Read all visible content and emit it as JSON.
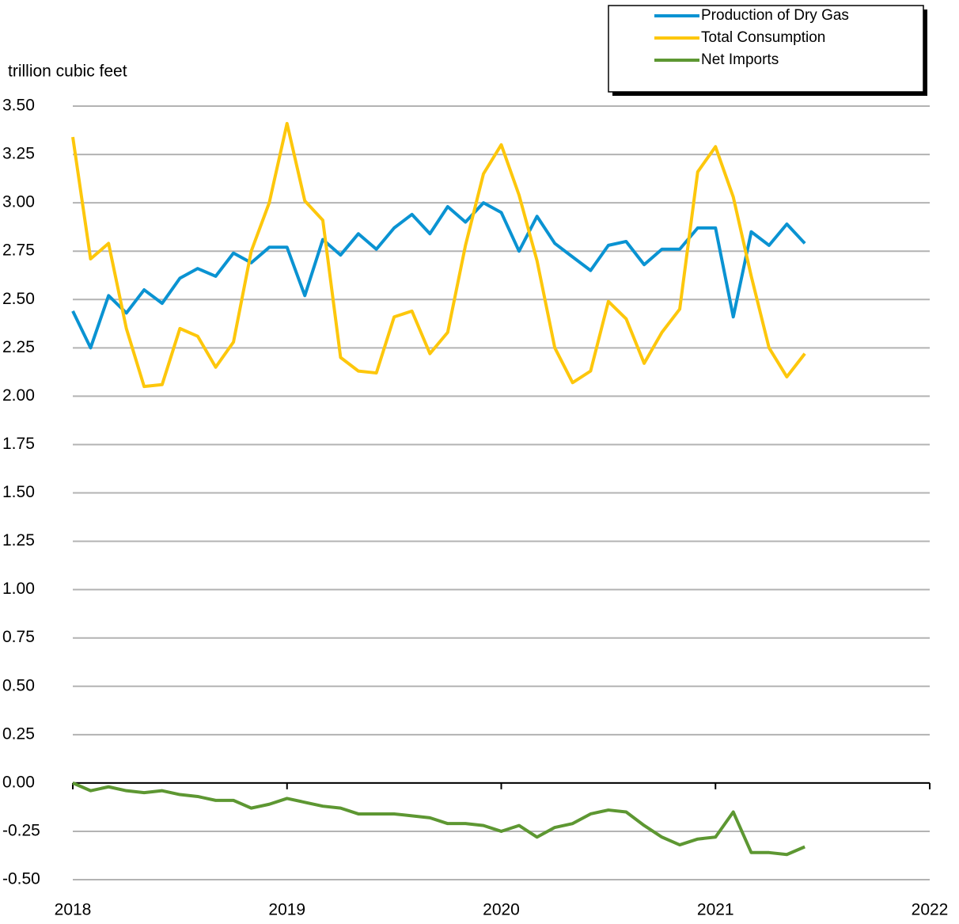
{
  "chart_data": {
    "type": "line",
    "y_label": "trillion cubic feet",
    "x": [
      2018,
      2018.083,
      2018.167,
      2018.25,
      2018.333,
      2018.417,
      2018.5,
      2018.583,
      2018.667,
      2018.75,
      2018.833,
      2018.917,
      2019,
      2019.083,
      2019.167,
      2019.25,
      2019.333,
      2019.417,
      2019.5,
      2019.583,
      2019.667,
      2019.75,
      2019.833,
      2019.917,
      2020,
      2020.083,
      2020.167,
      2020.25,
      2020.333,
      2020.417,
      2020.5,
      2020.583,
      2020.667,
      2020.75,
      2020.833,
      2020.917,
      2021,
      2021.083,
      2021.167,
      2021.25,
      2021.333,
      2021.417
    ],
    "series": [
      {
        "name": "Production of Dry Gas",
        "color": "#0a93d2",
        "values": [
          2.44,
          2.25,
          2.52,
          2.43,
          2.55,
          2.48,
          2.61,
          2.66,
          2.62,
          2.74,
          2.69,
          2.77,
          2.77,
          2.52,
          2.81,
          2.73,
          2.84,
          2.76,
          2.87,
          2.94,
          2.84,
          2.98,
          2.9,
          3.0,
          2.95,
          2.75,
          2.93,
          2.79,
          2.72,
          2.65,
          2.78,
          2.8,
          2.68,
          2.76,
          2.76,
          2.87,
          2.87,
          2.41,
          2.85,
          2.78,
          2.89,
          2.79
        ]
      },
      {
        "name": "Total Consumption",
        "color": "#fdc70c",
        "values": [
          3.34,
          2.71,
          2.79,
          2.35,
          2.05,
          2.06,
          2.35,
          2.31,
          2.15,
          2.28,
          2.75,
          3.0,
          3.41,
          3.01,
          2.91,
          2.2,
          2.13,
          2.12,
          2.41,
          2.44,
          2.22,
          2.33,
          2.78,
          3.15,
          3.3,
          3.04,
          2.7,
          2.25,
          2.07,
          2.13,
          2.49,
          2.4,
          2.17,
          2.33,
          2.45,
          3.16,
          3.29,
          3.03,
          2.62,
          2.25,
          2.1,
          2.22
        ]
      },
      {
        "name": "Net Imports",
        "color": "#5d9732",
        "values": [
          0.0,
          -0.04,
          -0.02,
          -0.04,
          -0.05,
          -0.04,
          -0.06,
          -0.07,
          -0.09,
          -0.09,
          -0.13,
          -0.11,
          -0.08,
          -0.1,
          -0.12,
          -0.13,
          -0.16,
          -0.16,
          -0.16,
          -0.17,
          -0.18,
          -0.21,
          -0.21,
          -0.22,
          -0.25,
          -0.22,
          -0.28,
          -0.23,
          -0.21,
          -0.16,
          -0.14,
          -0.15,
          -0.22,
          -0.28,
          -0.32,
          -0.29,
          -0.28,
          -0.15,
          -0.36,
          -0.36,
          -0.37,
          -0.33
        ]
      }
    ],
    "xlim": [
      2018,
      2022
    ],
    "xticks": [
      2018,
      2019,
      2020,
      2021,
      2022
    ],
    "ylim": [
      -0.5,
      3.5
    ],
    "yticks": [
      {
        "value": -0.5,
        "label": "-0.50"
      },
      {
        "value": -0.25,
        "label": "-0.25"
      },
      {
        "value": 0,
        "label": "0.00"
      },
      {
        "value": 0.25,
        "label": "0.25"
      },
      {
        "value": 0.5,
        "label": "0.50"
      },
      {
        "value": 0.75,
        "label": "0.75"
      },
      {
        "value": 1,
        "label": "1.00"
      },
      {
        "value": 1.25,
        "label": "1.25"
      },
      {
        "value": 1.5,
        "label": "1.50"
      },
      {
        "value": 1.75,
        "label": "1.75"
      },
      {
        "value": 2,
        "label": "2.00"
      },
      {
        "value": 2.25,
        "label": "2.25"
      },
      {
        "value": 2.5,
        "label": "2.50"
      },
      {
        "value": 2.75,
        "label": "2.75"
      },
      {
        "value": 3,
        "label": "3.00"
      },
      {
        "value": 3.25,
        "label": "3.25"
      },
      {
        "value": 3.5,
        "label": "3.50"
      }
    ],
    "grid": true,
    "legend": "top-right"
  }
}
